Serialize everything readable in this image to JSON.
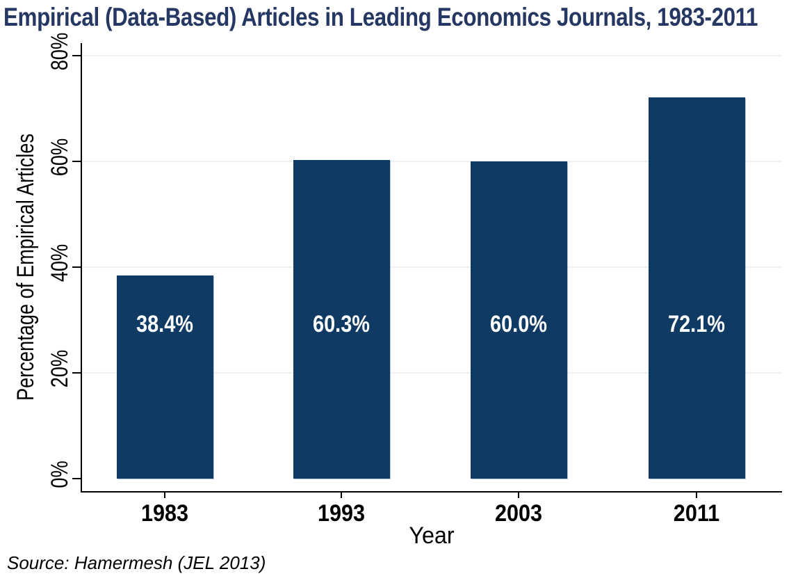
{
  "chart_data": {
    "type": "bar",
    "title": "Empirical (Data-Based) Articles in Leading Economics Journals, 1983-2011",
    "xlabel": "Year",
    "ylabel": "Percentage of Empirical Articles",
    "categories": [
      "1983",
      "1993",
      "2003",
      "2011"
    ],
    "values": [
      38.4,
      60.3,
      60.0,
      72.1
    ],
    "bar_labels": [
      "38.4%",
      "60.3%",
      "60.0%",
      "72.1%"
    ],
    "yticks": [
      0,
      20,
      40,
      60,
      80
    ],
    "ytick_labels": [
      "0%",
      "20%",
      "40%",
      "60%",
      "80%"
    ],
    "ylim": [
      0,
      82
    ],
    "grid": true,
    "legend": "none",
    "source_note": "Source: Hamermesh (JEL 2013)",
    "colors": {
      "bar": "#0e3a64",
      "bar_label": "#ffffff",
      "title": "#253763",
      "gridline": "#e8f1f4",
      "axis": "#000000",
      "background": "#ffffff"
    }
  }
}
